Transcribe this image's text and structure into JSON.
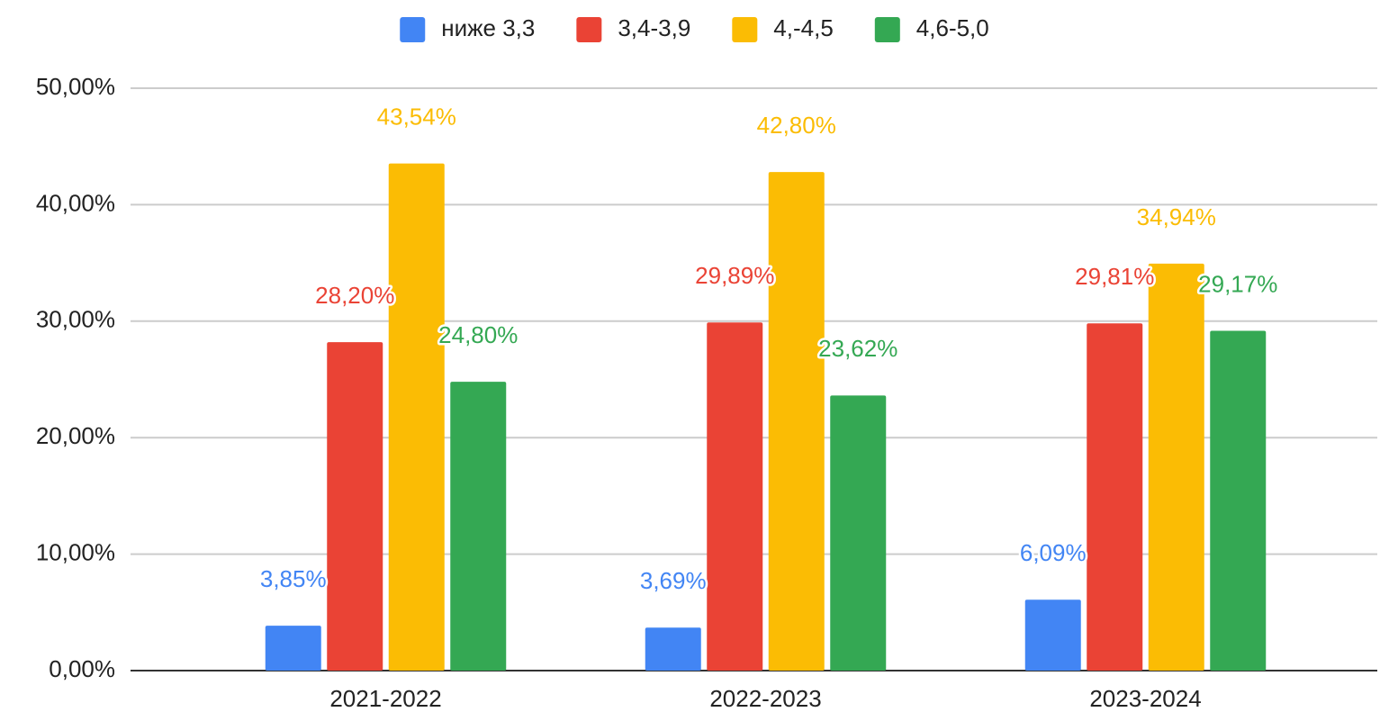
{
  "chart_data": {
    "type": "bar",
    "categories": [
      "2021-2022",
      "2022-2023",
      "2023-2024"
    ],
    "series": [
      {
        "name": "ниже 3,3",
        "color": "#4285f4",
        "values": [
          3.85,
          3.69,
          6.09
        ],
        "value_labels": [
          "3,85%",
          "3,69%",
          "6,09%"
        ]
      },
      {
        "name": "3,4-3,9",
        "color": "#ea4335",
        "values": [
          28.2,
          29.89,
          29.81
        ],
        "value_labels": [
          "28,20%",
          "29,89%",
          "29,81%"
        ]
      },
      {
        "name": "4,-4,5",
        "color": "#fbbc04",
        "values": [
          43.54,
          42.8,
          34.94
        ],
        "value_labels": [
          "43,54%",
          "42,80%",
          "34,94%"
        ]
      },
      {
        "name": "4,6-5,0",
        "color": "#34a853",
        "values": [
          24.8,
          23.62,
          29.17
        ],
        "value_labels": [
          "24,80%",
          "23,62%",
          "29,17%"
        ]
      }
    ],
    "ylim": [
      0,
      50
    ],
    "yticks": [
      {
        "value": 0,
        "label": "0,00%"
      },
      {
        "value": 10,
        "label": "10,00%"
      },
      {
        "value": 20,
        "label": "20,00%"
      },
      {
        "value": 30,
        "label": "30,00%"
      },
      {
        "value": 40,
        "label": "40,00%"
      },
      {
        "value": 50,
        "label": "50,00%"
      }
    ],
    "grid": true,
    "legend": "top"
  }
}
